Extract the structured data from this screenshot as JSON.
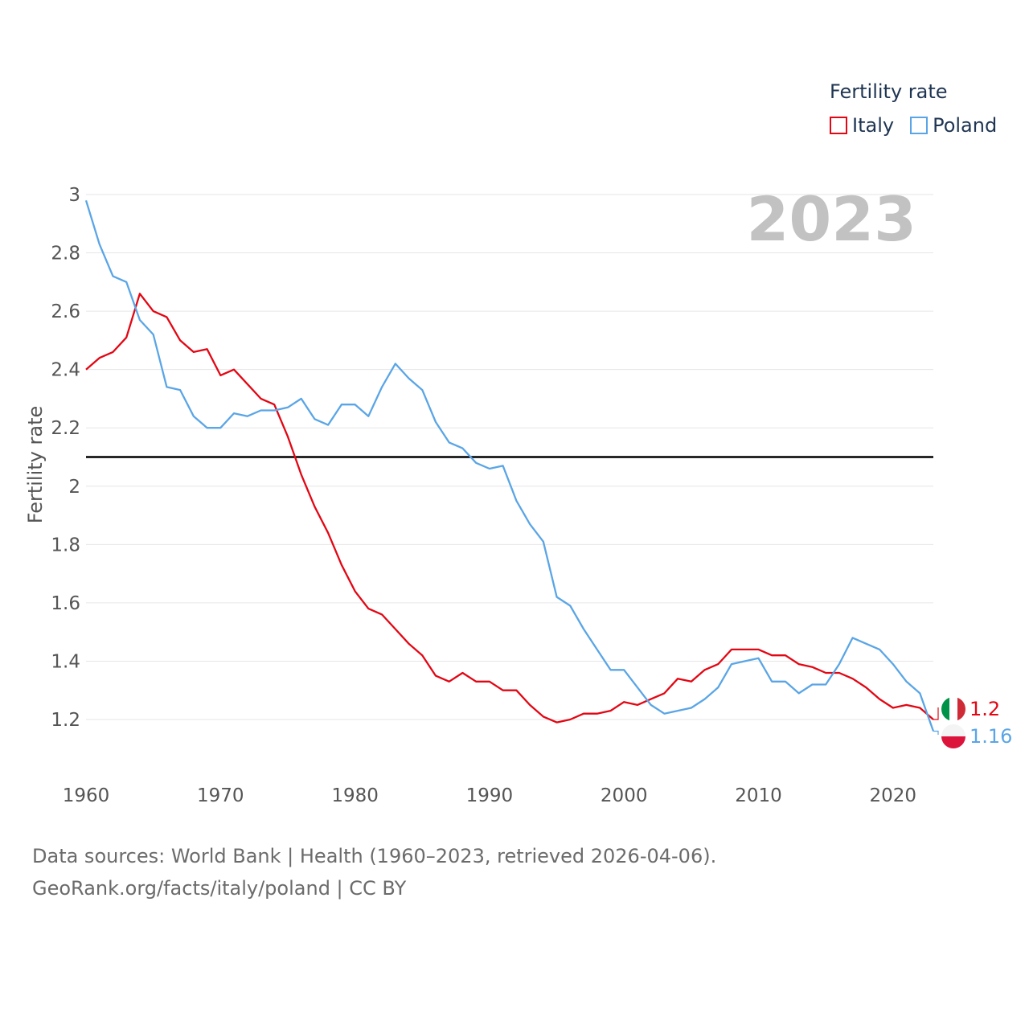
{
  "legend": {
    "title": "Fertility rate"
  },
  "year_label": "2023",
  "footer": {
    "line1": "Data sources: World Bank | Health (1960–2023, retrieved 2026-04-06).",
    "line2": "GeoRank.org/facts/italy/poland | CC BY"
  },
  "colors": {
    "italy": "#e30613",
    "poland": "#5aa5e6",
    "reference": "#000000",
    "grid": "#e6e6e6",
    "year": "#c2c2c2",
    "axis_text": "#555555"
  },
  "chart_data": {
    "type": "line",
    "title": "",
    "xlabel": "",
    "ylabel": "Fertility rate",
    "xlim": [
      1960,
      2023
    ],
    "ylim": [
      1.1,
      3.0
    ],
    "x_ticks": [
      1960,
      1970,
      1980,
      1990,
      2000,
      2010,
      2020
    ],
    "y_ticks": [
      1.2,
      1.4,
      1.6,
      1.8,
      2,
      2.2,
      2.4,
      2.6,
      2.8,
      3
    ],
    "reference_line": 2.1,
    "x": [
      1960,
      1961,
      1962,
      1963,
      1964,
      1965,
      1966,
      1967,
      1968,
      1969,
      1970,
      1971,
      1972,
      1973,
      1974,
      1975,
      1976,
      1977,
      1978,
      1979,
      1980,
      1981,
      1982,
      1983,
      1984,
      1985,
      1986,
      1987,
      1988,
      1989,
      1990,
      1991,
      1992,
      1993,
      1994,
      1995,
      1996,
      1997,
      1998,
      1999,
      2000,
      2001,
      2002,
      2003,
      2004,
      2005,
      2006,
      2007,
      2008,
      2009,
      2010,
      2011,
      2012,
      2013,
      2014,
      2015,
      2016,
      2017,
      2018,
      2019,
      2020,
      2021,
      2022,
      2023
    ],
    "series": [
      {
        "name": "Italy",
        "end_label": "1.2",
        "values": [
          2.4,
          2.44,
          2.46,
          2.51,
          2.66,
          2.6,
          2.58,
          2.5,
          2.46,
          2.47,
          2.38,
          2.4,
          2.35,
          2.3,
          2.28,
          2.17,
          2.04,
          1.93,
          1.84,
          1.73,
          1.64,
          1.58,
          1.56,
          1.51,
          1.46,
          1.42,
          1.35,
          1.33,
          1.36,
          1.33,
          1.33,
          1.3,
          1.3,
          1.25,
          1.21,
          1.19,
          1.2,
          1.22,
          1.22,
          1.23,
          1.26,
          1.25,
          1.27,
          1.29,
          1.34,
          1.33,
          1.37,
          1.39,
          1.44,
          1.44,
          1.44,
          1.42,
          1.42,
          1.39,
          1.38,
          1.36,
          1.36,
          1.34,
          1.31,
          1.27,
          1.24,
          1.25,
          1.24,
          1.2
        ]
      },
      {
        "name": "Poland",
        "end_label": "1.16",
        "values": [
          2.98,
          2.83,
          2.72,
          2.7,
          2.57,
          2.52,
          2.34,
          2.33,
          2.24,
          2.2,
          2.2,
          2.25,
          2.24,
          2.26,
          2.26,
          2.27,
          2.3,
          2.23,
          2.21,
          2.28,
          2.28,
          2.24,
          2.34,
          2.42,
          2.37,
          2.33,
          2.22,
          2.15,
          2.13,
          2.08,
          2.06,
          2.07,
          1.95,
          1.87,
          1.81,
          1.62,
          1.59,
          1.51,
          1.44,
          1.37,
          1.37,
          1.31,
          1.25,
          1.22,
          1.23,
          1.24,
          1.27,
          1.31,
          1.39,
          1.4,
          1.41,
          1.33,
          1.33,
          1.29,
          1.32,
          1.32,
          1.39,
          1.48,
          1.46,
          1.44,
          1.39,
          1.33,
          1.29,
          1.16
        ]
      }
    ]
  }
}
